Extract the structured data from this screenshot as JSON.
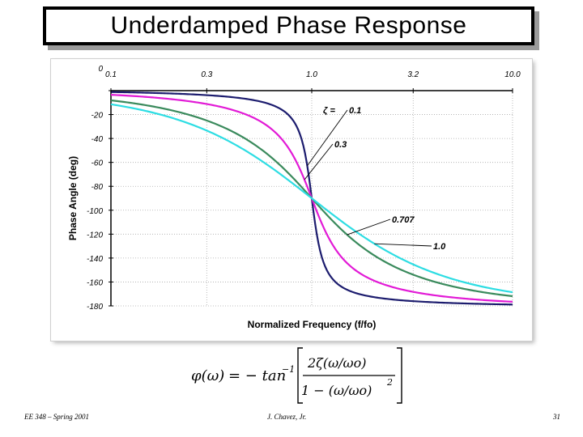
{
  "slide": {
    "title": "Underdamped  Phase  Response",
    "footer_left": "EE 348 – Spring 2001",
    "footer_center": "J. Chavez, Jr.",
    "footer_right": "31"
  },
  "formula": {
    "lhs": "φ(ω)",
    "equals": "= − tan",
    "exponent": "−1",
    "numerator": "2ζ(ω/ωo)",
    "denominator": "1 − (ω/ωo)",
    "power": "2"
  },
  "chart_data": {
    "type": "line",
    "title": "",
    "xlabel": "Normalized Frequency (f/fo)",
    "ylabel": "Phase Angle (deg)",
    "x_scale": "log",
    "xlim": [
      0.1,
      10.0
    ],
    "ylim": [
      -180,
      0
    ],
    "x_ticks": [
      "0.1",
      "0.3",
      "1.0",
      "3.2",
      "10.0"
    ],
    "y_ticks": [
      "0",
      "-20",
      "-40",
      "-60",
      "-80",
      "-100",
      "-120",
      "-140",
      "-160",
      "-180"
    ],
    "grid": "dotted",
    "zeta_prefix": "ζ =",
    "series": [
      {
        "name": "0.1",
        "color": "#1c1c6e",
        "zeta": 0.1
      },
      {
        "name": "0.3",
        "color": "#e21ad6",
        "zeta": 0.3
      },
      {
        "name": "0.707",
        "color": "#3a8a5c",
        "zeta": 0.707
      },
      {
        "name": "1.0",
        "color": "#2ddde3",
        "zeta": 1.0
      }
    ]
  }
}
